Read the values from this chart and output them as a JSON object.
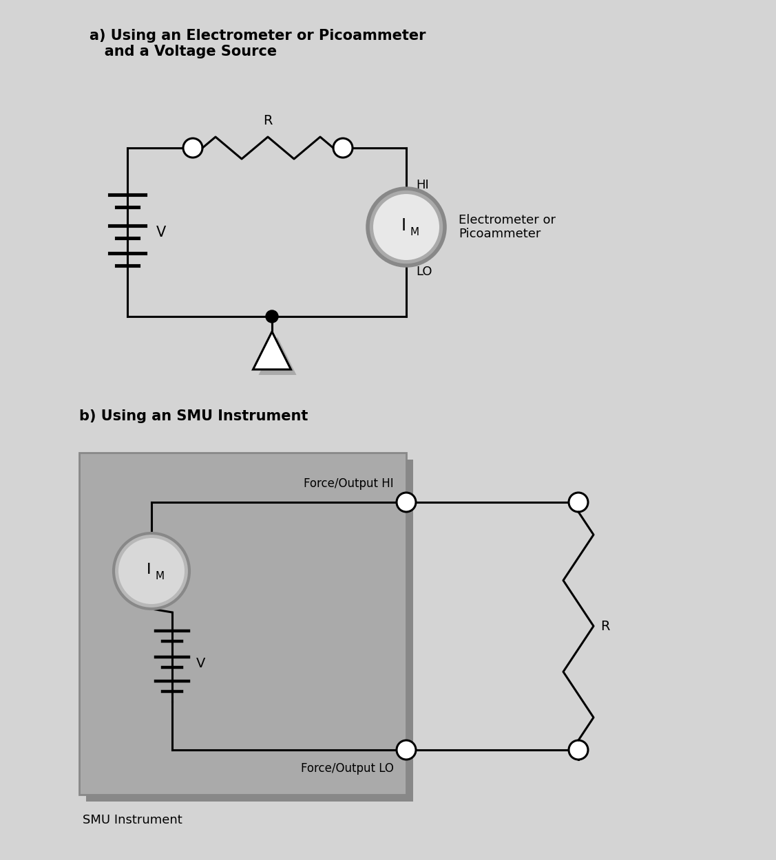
{
  "bg_color": "#d4d4d4",
  "title_a": "a) Using an Electrometer or Picoammeter\n   and a Voltage Source",
  "title_b": "b) Using an SMU Instrument",
  "label_hi": "HI",
  "label_lo": "LO",
  "label_r": "R",
  "label_v": "V",
  "label_im": "I",
  "label_im_sub": "M",
  "label_electrometer": "Electrometer or\nPicoammeter",
  "label_smu": "SMU Instrument",
  "label_force_hi": "Force/Output HI",
  "label_force_lo": "Force/Output LO",
  "line_color": "#000000",
  "line_width": 2.2,
  "ammeter_ring_color": "#aaaaaa",
  "ammeter_inner_color": "#e8e8e8",
  "smu_box_fill": "#aaaaaa",
  "smu_shadow_fill": "#888888",
  "ground_white": "#ffffff",
  "ground_shadow": "#aaaaaa"
}
